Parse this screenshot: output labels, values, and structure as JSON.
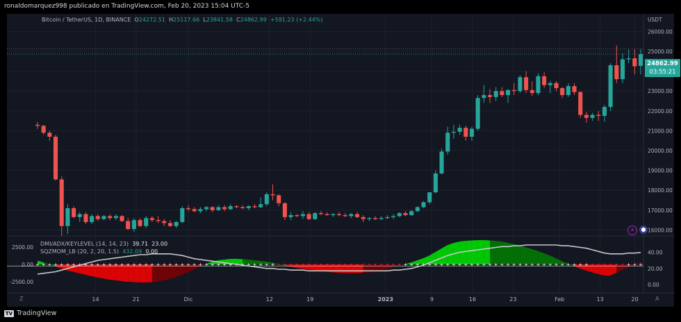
{
  "header": {
    "publisher_text": "ronaldomarquez998 publicado en TradingView.com, Feb 20, 2023 15:04 UTC-5"
  },
  "legend": {
    "symbol": "Bitcoin / TetherUS, 1D, BINANCE",
    "o_label": "O",
    "o_value": "24272.51",
    "h_label": "H",
    "h_value": "25117.66",
    "l_label": "L",
    "l_value": "23841.58",
    "c_label": "C",
    "c_value": "24862.99",
    "change": "+591.23 (+2.44%)"
  },
  "indicator1": {
    "label": "DMI/ADX/KEYLEVEL (14, 14, 23)",
    "v1": "39.71",
    "v2": "23.00"
  },
  "indicator2": {
    "label": "SQZMOM_LB (20, 2, 20, 1.5)",
    "v1": "432.09",
    "v2": "0.00"
  },
  "price_axis": {
    "currency": "USDT",
    "ticks": [
      "26000.00",
      "25000.00",
      "24000.00",
      "23000.00",
      "22000.00",
      "21000.00",
      "20000.00",
      "19000.00",
      "18000.00",
      "17000.00",
      "16000.00"
    ],
    "last_price": "24862.99",
    "countdown": "03:55:21"
  },
  "indicator_axis": {
    "left_ticks": [
      "2500.00",
      "0.00",
      "-2500.00"
    ],
    "right_ticks": [
      "40.00",
      "20.00",
      "0.00"
    ]
  },
  "time_axis": {
    "labels": [
      "14",
      "21",
      "Dic",
      "12",
      "19",
      "2023",
      "9",
      "16",
      "23",
      "Feb",
      "13",
      "20"
    ],
    "left_button": "Z",
    "right_button": "A"
  },
  "footer": {
    "brand": "TradingView"
  },
  "colors": {
    "up": "#26a69a",
    "down": "#ef5350",
    "bg": "#131722",
    "grid": "#1e222d",
    "sqz_up_strong": "#00e600",
    "sqz_up_weak": "#008000",
    "sqz_down_strong": "#ff0000",
    "sqz_down_weak": "#800000"
  },
  "chart_data": [
    {
      "type": "candlestick",
      "title": "Bitcoin / TetherUS, 1D, BINANCE",
      "ylabel": "USDT",
      "ylim": [
        15700,
        26400
      ],
      "candles": [
        {
          "o": 21300,
          "h": 21450,
          "l": 21100,
          "c": 21250
        },
        {
          "o": 21250,
          "h": 21300,
          "l": 20800,
          "c": 20900
        },
        {
          "o": 20900,
          "h": 21000,
          "l": 20500,
          "c": 20700
        },
        {
          "o": 20700,
          "h": 20800,
          "l": 18500,
          "c": 18550
        },
        {
          "o": 18550,
          "h": 18700,
          "l": 15700,
          "c": 16200
        },
        {
          "o": 16200,
          "h": 17300,
          "l": 15800,
          "c": 17100
        },
        {
          "o": 17100,
          "h": 17200,
          "l": 16600,
          "c": 16650
        },
        {
          "o": 16650,
          "h": 16900,
          "l": 16400,
          "c": 16800
        },
        {
          "o": 16800,
          "h": 16900,
          "l": 16300,
          "c": 16400
        },
        {
          "o": 16400,
          "h": 16800,
          "l": 16300,
          "c": 16700
        },
        {
          "o": 16700,
          "h": 16800,
          "l": 16450,
          "c": 16550
        },
        {
          "o": 16550,
          "h": 16750,
          "l": 16500,
          "c": 16700
        },
        {
          "o": 16700,
          "h": 16800,
          "l": 16500,
          "c": 16600
        },
        {
          "o": 16600,
          "h": 16800,
          "l": 16500,
          "c": 16700
        },
        {
          "o": 16700,
          "h": 16750,
          "l": 16400,
          "c": 16450
        },
        {
          "o": 16450,
          "h": 16600,
          "l": 16000,
          "c": 16050
        },
        {
          "o": 16050,
          "h": 16600,
          "l": 15900,
          "c": 16500
        },
        {
          "o": 16500,
          "h": 16600,
          "l": 16150,
          "c": 16200
        },
        {
          "o": 16200,
          "h": 16700,
          "l": 16100,
          "c": 16600
        },
        {
          "o": 16600,
          "h": 16700,
          "l": 16400,
          "c": 16500
        },
        {
          "o": 16500,
          "h": 16700,
          "l": 16350,
          "c": 16450
        },
        {
          "o": 16450,
          "h": 16550,
          "l": 16200,
          "c": 16350
        },
        {
          "o": 16350,
          "h": 16500,
          "l": 16150,
          "c": 16200
        },
        {
          "o": 16200,
          "h": 16450,
          "l": 16100,
          "c": 16400
        },
        {
          "o": 16400,
          "h": 17200,
          "l": 16350,
          "c": 17100
        },
        {
          "o": 17100,
          "h": 17250,
          "l": 16950,
          "c": 17050
        },
        {
          "o": 17050,
          "h": 17150,
          "l": 16900,
          "c": 16950
        },
        {
          "o": 16950,
          "h": 17150,
          "l": 16850,
          "c": 17050
        },
        {
          "o": 17050,
          "h": 17200,
          "l": 16950,
          "c": 17150
        },
        {
          "o": 17150,
          "h": 17200,
          "l": 16900,
          "c": 17000
        },
        {
          "o": 17000,
          "h": 17250,
          "l": 16950,
          "c": 17150
        },
        {
          "o": 17150,
          "h": 17250,
          "l": 16950,
          "c": 17050
        },
        {
          "o": 17050,
          "h": 17300,
          "l": 17000,
          "c": 17200
        },
        {
          "o": 17200,
          "h": 17250,
          "l": 17100,
          "c": 17150
        },
        {
          "o": 17150,
          "h": 17250,
          "l": 17050,
          "c": 17100
        },
        {
          "o": 17100,
          "h": 17250,
          "l": 17000,
          "c": 17200
        },
        {
          "o": 17200,
          "h": 17300,
          "l": 17100,
          "c": 17150
        },
        {
          "o": 17150,
          "h": 17650,
          "l": 17100,
          "c": 17300
        },
        {
          "o": 17300,
          "h": 17900,
          "l": 17200,
          "c": 17800
        },
        {
          "o": 17800,
          "h": 18300,
          "l": 17500,
          "c": 17750
        },
        {
          "o": 17750,
          "h": 17800,
          "l": 17200,
          "c": 17350
        },
        {
          "o": 17350,
          "h": 17400,
          "l": 16500,
          "c": 16650
        },
        {
          "o": 16650,
          "h": 16900,
          "l": 16500,
          "c": 16750
        },
        {
          "o": 16750,
          "h": 16800,
          "l": 16650,
          "c": 16700
        },
        {
          "o": 16700,
          "h": 16950,
          "l": 16550,
          "c": 16800
        },
        {
          "o": 16800,
          "h": 16900,
          "l": 16500,
          "c": 16550
        },
        {
          "o": 16550,
          "h": 16900,
          "l": 16500,
          "c": 16850
        },
        {
          "o": 16850,
          "h": 16950,
          "l": 16750,
          "c": 16800
        },
        {
          "o": 16800,
          "h": 16900,
          "l": 16700,
          "c": 16750
        },
        {
          "o": 16750,
          "h": 16850,
          "l": 16650,
          "c": 16800
        },
        {
          "o": 16800,
          "h": 16900,
          "l": 16700,
          "c": 16750
        },
        {
          "o": 16750,
          "h": 16850,
          "l": 16650,
          "c": 16700
        },
        {
          "o": 16700,
          "h": 16850,
          "l": 16600,
          "c": 16800
        },
        {
          "o": 16800,
          "h": 16900,
          "l": 16600,
          "c": 16650
        },
        {
          "o": 16650,
          "h": 16750,
          "l": 16400,
          "c": 16550
        },
        {
          "o": 16550,
          "h": 16650,
          "l": 16450,
          "c": 16600
        },
        {
          "o": 16600,
          "h": 16700,
          "l": 16500,
          "c": 16550
        },
        {
          "o": 16550,
          "h": 16700,
          "l": 16500,
          "c": 16600
        },
        {
          "o": 16600,
          "h": 16750,
          "l": 16550,
          "c": 16650
        },
        {
          "o": 16650,
          "h": 16800,
          "l": 16550,
          "c": 16700
        },
        {
          "o": 16700,
          "h": 16900,
          "l": 16650,
          "c": 16850
        },
        {
          "o": 16850,
          "h": 16950,
          "l": 16700,
          "c": 16750
        },
        {
          "o": 16750,
          "h": 17000,
          "l": 16700,
          "c": 16950
        },
        {
          "o": 16950,
          "h": 17200,
          "l": 16900,
          "c": 17150
        },
        {
          "o": 17150,
          "h": 17450,
          "l": 17100,
          "c": 17400
        },
        {
          "o": 17400,
          "h": 17900,
          "l": 17300,
          "c": 17900
        },
        {
          "o": 17900,
          "h": 19000,
          "l": 17850,
          "c": 18850
        },
        {
          "o": 18850,
          "h": 20100,
          "l": 18800,
          "c": 19950
        },
        {
          "o": 19950,
          "h": 21200,
          "l": 19800,
          "c": 20900
        },
        {
          "o": 20900,
          "h": 21300,
          "l": 20600,
          "c": 20950
        },
        {
          "o": 20950,
          "h": 21300,
          "l": 20800,
          "c": 21150
        },
        {
          "o": 21150,
          "h": 21250,
          "l": 20500,
          "c": 20700
        },
        {
          "o": 20700,
          "h": 21200,
          "l": 20500,
          "c": 21100
        },
        {
          "o": 21100,
          "h": 22800,
          "l": 21000,
          "c": 22650
        },
        {
          "o": 22650,
          "h": 23300,
          "l": 22400,
          "c": 22800
        },
        {
          "o": 22800,
          "h": 23100,
          "l": 22400,
          "c": 22700
        },
        {
          "o": 22700,
          "h": 23200,
          "l": 22500,
          "c": 23000
        },
        {
          "o": 23000,
          "h": 23200,
          "l": 22700,
          "c": 22800
        },
        {
          "o": 22800,
          "h": 23100,
          "l": 22400,
          "c": 23050
        },
        {
          "o": 23050,
          "h": 23400,
          "l": 22800,
          "c": 23000
        },
        {
          "o": 23000,
          "h": 23800,
          "l": 22900,
          "c": 23700
        },
        {
          "o": 23700,
          "h": 24000,
          "l": 22900,
          "c": 23050
        },
        {
          "o": 23050,
          "h": 23500,
          "l": 22750,
          "c": 22900
        },
        {
          "o": 22900,
          "h": 23900,
          "l": 22800,
          "c": 23750
        },
        {
          "o": 23750,
          "h": 23950,
          "l": 23150,
          "c": 23300
        },
        {
          "o": 23300,
          "h": 23500,
          "l": 22900,
          "c": 23400
        },
        {
          "o": 23400,
          "h": 23500,
          "l": 23000,
          "c": 23150
        },
        {
          "o": 23150,
          "h": 23200,
          "l": 22650,
          "c": 22800
        },
        {
          "o": 22800,
          "h": 23400,
          "l": 22700,
          "c": 23250
        },
        {
          "o": 23250,
          "h": 23400,
          "l": 22800,
          "c": 22950
        },
        {
          "o": 22950,
          "h": 23000,
          "l": 21650,
          "c": 21800
        },
        {
          "o": 21800,
          "h": 21950,
          "l": 21400,
          "c": 21650
        },
        {
          "o": 21650,
          "h": 21900,
          "l": 21500,
          "c": 21800
        },
        {
          "o": 21800,
          "h": 22000,
          "l": 21500,
          "c": 21750
        },
        {
          "o": 21750,
          "h": 22300,
          "l": 21450,
          "c": 22200
        },
        {
          "o": 22200,
          "h": 24400,
          "l": 22000,
          "c": 24300
        },
        {
          "o": 24300,
          "h": 25300,
          "l": 23400,
          "c": 23600
        },
        {
          "o": 23600,
          "h": 24900,
          "l": 23400,
          "c": 24600
        },
        {
          "o": 24600,
          "h": 25100,
          "l": 24400,
          "c": 24650
        },
        {
          "o": 24650,
          "h": 25100,
          "l": 23850,
          "c": 24250
        },
        {
          "o": 24272.51,
          "h": 25117.66,
          "l": 23841.58,
          "c": 24862.99
        }
      ]
    },
    {
      "type": "area",
      "title": "SQZMOM_LB (20, 2, 20, 1.5)",
      "ylim": [
        -3500,
        3500
      ],
      "values": [
        550,
        300,
        0,
        -300,
        -600,
        -900,
        -1100,
        -1300,
        -1500,
        -1700,
        -1900,
        -2050,
        -2200,
        -2300,
        -2400,
        -2500,
        -2550,
        -2600,
        -2600,
        -2550,
        -2450,
        -2300,
        -2100,
        -1800,
        -1500,
        -1100,
        -700,
        -300,
        100,
        400,
        600,
        700,
        800,
        800,
        750,
        700,
        600,
        500,
        400,
        250,
        0,
        -200,
        -350,
        -500,
        -650,
        -750,
        -850,
        -950,
        -1050,
        -1150,
        -1200,
        -1250,
        -1250,
        -1250,
        -1200,
        -1150,
        -1000,
        -850,
        -650,
        -400,
        -150,
        50,
        300,
        600,
        900,
        1300,
        1800,
        2300,
        2800,
        3100,
        3300,
        3400,
        3450,
        3500,
        3500,
        3450,
        3400,
        3300,
        3100,
        2900,
        2700,
        2450,
        2200,
        1900,
        1600,
        1250,
        850,
        450,
        100,
        -300,
        -600,
        -900,
        -1150,
        -1400,
        -1600,
        -1600,
        -1200,
        -800,
        -400,
        -100,
        432.09
      ],
      "zero_line": 0.0
    },
    {
      "type": "line",
      "title": "DMI/ADX/KEYLEVEL (14, 14, 23)",
      "ylim": [
        -5,
        55
      ],
      "key_level": 23.0,
      "values": [
        13,
        14,
        15,
        16,
        18,
        20,
        22,
        24,
        26,
        28,
        30,
        31,
        32,
        33,
        34,
        35,
        36,
        37,
        37,
        38,
        38,
        38,
        38,
        37,
        36,
        34,
        32,
        31,
        30,
        29,
        28,
        27,
        26,
        25,
        24,
        23,
        22,
        21,
        20,
        20,
        19,
        19,
        18,
        18,
        18,
        17,
        17,
        17,
        17,
        17,
        17,
        17,
        17,
        17,
        17,
        17,
        17,
        17,
        17,
        18,
        18,
        19,
        20,
        22,
        24,
        27,
        30,
        33,
        36,
        38,
        40,
        41,
        42,
        43,
        44,
        45,
        46,
        47,
        47,
        48,
        48,
        49,
        49,
        49,
        49,
        49,
        49,
        48,
        48,
        47,
        46,
        45,
        43,
        41,
        39,
        38,
        38,
        38,
        39,
        39,
        39.71
      ]
    }
  ]
}
